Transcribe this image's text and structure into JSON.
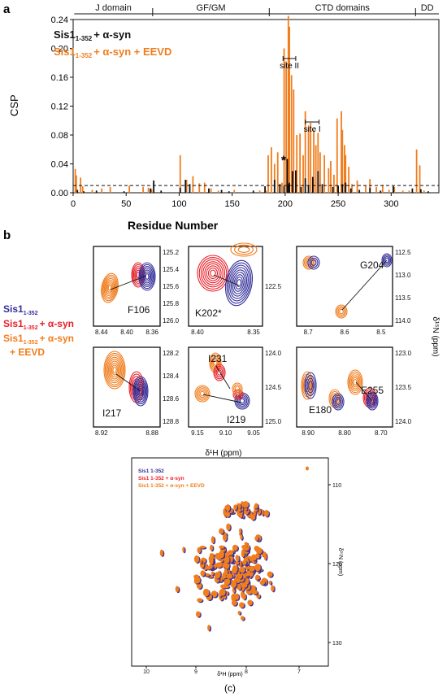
{
  "panel_labels": {
    "a": "a",
    "b": "b",
    "c": "(c)"
  },
  "colors": {
    "orange": "#F07D1E",
    "blue": "#35309A",
    "red": "#E8202A",
    "black": "#111111"
  },
  "chart_data": [
    {
      "type": "bar",
      "ylabel": "CSP",
      "xlabel": "Residue Number",
      "xlim": [
        0,
        345
      ],
      "ylim": [
        0,
        0.24
      ],
      "xticks": [
        0,
        50,
        100,
        150,
        200,
        250,
        300
      ],
      "yticks": [
        "0.00",
        "0.04",
        "0.08",
        "0.12",
        "0.16",
        "0.20",
        "0.24"
      ],
      "threshold": 0.01,
      "domains": [
        {
          "label": "J domain",
          "start": 1,
          "end": 75
        },
        {
          "label": "GF/GM",
          "start": 75,
          "end": 185
        },
        {
          "label": "CTD domains",
          "start": 185,
          "end": 323
        },
        {
          "label": "DD",
          "start": 323,
          "end": 345
        }
      ],
      "legend": [
        "Sis1 1-352 + α-syn",
        "Sis1 1-352 + α-syn + EEVD"
      ],
      "annotations": [
        {
          "text": "site II",
          "from": 198,
          "to": 210,
          "y": 0.186
        },
        {
          "text": "site I",
          "from": 219,
          "to": 232,
          "y": 0.098
        },
        {
          "text": "*",
          "x": 200,
          "y": 0.039
        }
      ],
      "series": [
        {
          "name": "Sis1 1-352 + α-syn",
          "color": "#111111",
          "x": [
            4,
            10,
            22,
            48,
            73,
            76,
            83,
            101,
            106,
            110,
            128,
            140,
            147,
            170,
            181,
            190,
            195,
            199,
            202,
            203,
            204,
            207,
            210,
            215,
            219,
            222,
            226,
            231,
            235,
            245,
            250,
            254,
            257,
            262,
            270,
            280,
            290,
            302,
            320,
            328,
            335
          ],
          "values": [
            0.004,
            0.002,
            0.003,
            0.002,
            0.006,
            0.017,
            0.003,
            0.007,
            0.018,
            0.012,
            0.006,
            0.004,
            0.002,
            0.003,
            0.009,
            0.018,
            0.012,
            0.009,
            0.047,
            0.012,
            0.014,
            0.03,
            0.031,
            0.008,
            0.02,
            0.01,
            0.022,
            0.03,
            0.012,
            0.008,
            0.01,
            0.012,
            0.014,
            0.006,
            0.004,
            0.007,
            0.003,
            0.009,
            0.006,
            0.005,
            0.002
          ]
        },
        {
          "name": "Sis1 1-352 + α-syn + EEVD",
          "color": "#F07D1E",
          "x": [
            2,
            3,
            7,
            9,
            18,
            27,
            35,
            53,
            66,
            71,
            74,
            101,
            107,
            113,
            119,
            124,
            130,
            137,
            152,
            176,
            182,
            184,
            187,
            190,
            193,
            197,
            199,
            201,
            203,
            204,
            206,
            208,
            211,
            214,
            217,
            219,
            222,
            224,
            227,
            229,
            231,
            233,
            237,
            241,
            243,
            246,
            249,
            253,
            254,
            256,
            257,
            260,
            263,
            268,
            276,
            280,
            286,
            292,
            298,
            303,
            311,
            317,
            324,
            327,
            331
          ],
          "values": [
            0.033,
            0.024,
            0.021,
            0.009,
            0.004,
            0.006,
            0.008,
            0.01,
            0.008,
            0.007,
            0.005,
            0.052,
            0.018,
            0.023,
            0.013,
            0.014,
            0.006,
            0.003,
            0.004,
            0.003,
            0.003,
            0.052,
            0.063,
            0.04,
            0.056,
            0.014,
            0.2,
            0.182,
            0.245,
            0.23,
            0.163,
            0.143,
            0.08,
            0.082,
            0.052,
            0.113,
            0.092,
            0.097,
            0.087,
            0.066,
            0.083,
            0.056,
            0.052,
            0.034,
            0.044,
            0.025,
            0.103,
            0.113,
            0.087,
            0.066,
            0.052,
            0.036,
            0.012,
            0.017,
            0.01,
            0.019,
            0.008,
            0.011,
            0.004,
            0.008,
            0.003,
            0.003,
            0.06,
            0.038,
            0.003
          ]
        }
      ]
    }
  ],
  "legend_a": {
    "line1_main": "Sis1",
    "line1_sub": "1-352",
    "line1_rest": "+ α-syn",
    "line2_main": "Sis1",
    "line2_sub": "1-352",
    "line2_rest": "+ α-syn + EEVD"
  },
  "legend_b": {
    "l1_main": "Sis1",
    "l1_sub": "1-352",
    "l2_main": "Sis1",
    "l2_sub": "1-352",
    "l2_rest": "+ α-syn",
    "l3_main": "Sis1",
    "l3_sub": "1-352",
    "l3_rest": "+ α-syn",
    "l4": "+ EEVD"
  },
  "zoom_panels": [
    {
      "label": "F106",
      "xticks": [
        "8.44",
        "8.40",
        "8.36"
      ],
      "yticks": [
        "125.2",
        "125.4",
        "125.6",
        "125.8",
        "126.0"
      ]
    },
    {
      "label": "K202*",
      "xticks": [
        "8.40",
        "8.35"
      ],
      "yticks": [
        "122.5"
      ]
    },
    {
      "label": "G204",
      "xticks": [
        "8.7",
        "8.6",
        "8.5"
      ],
      "yticks": [
        "112.5",
        "113.0",
        "113.5",
        "114.0"
      ]
    },
    {
      "label": "I217",
      "xticks": [
        "8.92",
        "8.88"
      ],
      "yticks": [
        "128.2",
        "128.4",
        "128.6",
        "128.8"
      ]
    },
    {
      "labels": [
        "I231",
        "I219"
      ],
      "xticks": [
        "9.15",
        "9.10",
        "9.05"
      ],
      "yticks": [
        "124.0",
        "124.5",
        "125.0"
      ]
    },
    {
      "labels": [
        "E255",
        "E180"
      ],
      "xticks": [
        "8.90",
        "8.80",
        "8.70"
      ],
      "yticks": [
        "123.0",
        "123.5",
        "124.0"
      ]
    }
  ],
  "axes_b": {
    "xlabel": "δ¹H (ppm)",
    "ylabel": "δ¹⁵N (ppm)"
  },
  "panel_c": {
    "legend": [
      "Sis1 1-352",
      "Sis1 1-352 + α-syn",
      "Sis1 1-352 + α-syn + EEVD"
    ],
    "xticks": [
      "10",
      "9",
      "8",
      "7"
    ],
    "yticks": [
      "110",
      "120",
      "130"
    ],
    "xlabel": "δ¹H (ppm)",
    "ylabel": "δ¹⁵N (ppm)"
  }
}
